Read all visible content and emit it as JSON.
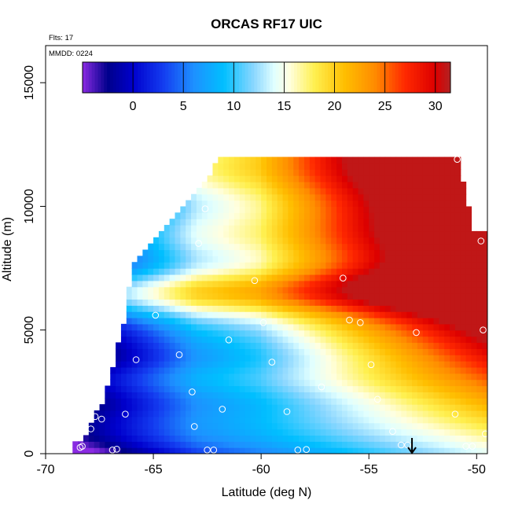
{
  "chart_data": {
    "type": "heatmap",
    "title": "ORCAS RF17 UIC",
    "annotations": {
      "flights": "Flts: 17",
      "date": "MMDD: 0224"
    },
    "xlabel": "Latitude (deg N)",
    "ylabel": "Altitude (m)",
    "xlim": [
      -70,
      -49.5
    ],
    "ylim": [
      0,
      16500
    ],
    "x_ticks": [
      -70,
      -65,
      -60,
      -55,
      -50
    ],
    "x_tick_labels": [
      "-70",
      "-65",
      "-60",
      "-55",
      "-50"
    ],
    "y_ticks": [
      0,
      5000,
      10000,
      15000
    ],
    "y_tick_labels": [
      "0",
      "5000",
      "10000",
      "15000"
    ],
    "colorbar": {
      "range": [
        -5,
        31.5
      ],
      "ticks": [
        0,
        5,
        10,
        15,
        20,
        25,
        30
      ],
      "tick_labels": [
        "0",
        "5",
        "10",
        "15",
        "20",
        "25",
        "30"
      ],
      "colors": [
        "#8a2be2",
        "#00008b",
        "#0000cd",
        "#1e90ff",
        "#00bfff",
        "#e0ffff",
        "#ffffe0",
        "#ffe033",
        "#ffa500",
        "#ff4500",
        "#e00000",
        "#b22222"
      ]
    },
    "flight_track": "white circles (sampling points)",
    "marker": {
      "type": "arrow",
      "latitude": -53
    },
    "grid": false,
    "legend": "colorbar top-inside"
  }
}
